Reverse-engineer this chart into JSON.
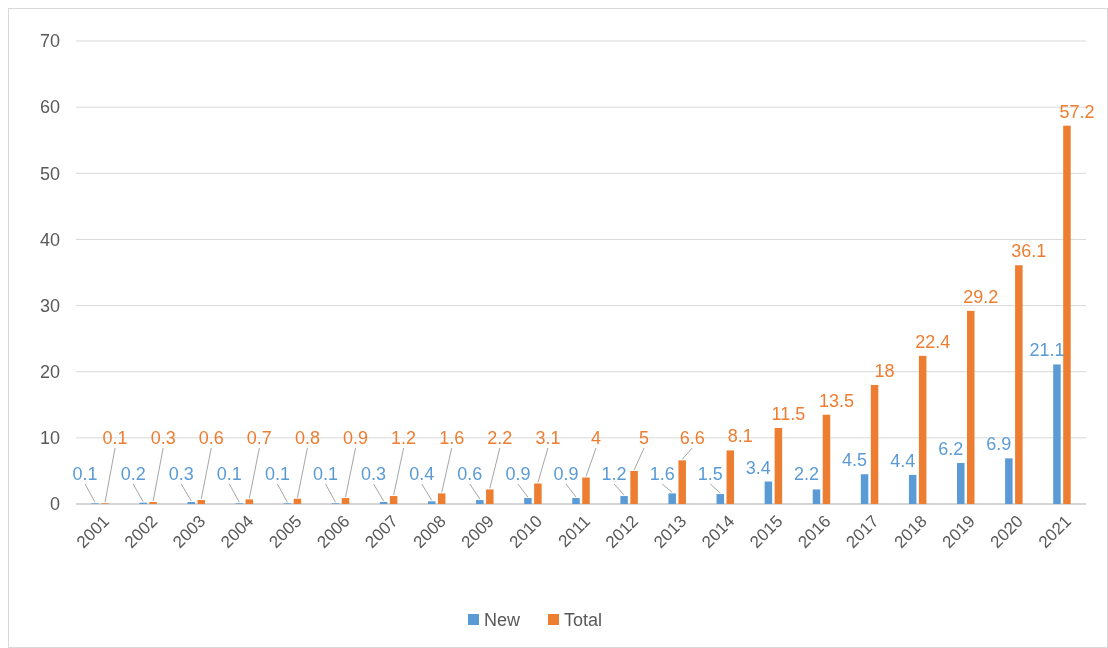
{
  "chart_data": {
    "type": "bar",
    "categories": [
      "2001",
      "2002",
      "2003",
      "2004",
      "2005",
      "2006",
      "2007",
      "2008",
      "2009",
      "2010",
      "2011",
      "2012",
      "2013",
      "2014",
      "2015",
      "2016",
      "2017",
      "2018",
      "2019",
      "2020",
      "2021"
    ],
    "series": [
      {
        "name": "New",
        "color": "#5b9bd5",
        "values": [
          0.1,
          0.2,
          0.3,
          0.1,
          0.1,
          0.1,
          0.3,
          0.4,
          0.6,
          0.9,
          0.9,
          1.2,
          1.6,
          1.5,
          3.4,
          2.2,
          4.5,
          4.4,
          6.2,
          6.9,
          21.1
        ]
      },
      {
        "name": "Total",
        "color": "#ed7d31",
        "values": [
          0.1,
          0.3,
          0.6,
          0.7,
          0.8,
          0.9,
          1.2,
          1.6,
          2.2,
          3.1,
          4,
          5,
          6.6,
          8.1,
          11.5,
          13.5,
          18,
          22.4,
          29.2,
          36.1,
          57.2
        ]
      }
    ],
    "ylim": [
      0,
      70
    ],
    "yticks": [
      0,
      10,
      20,
      30,
      40,
      50,
      60,
      70
    ],
    "grid": "y",
    "legend": "bottom",
    "data_labels": true
  }
}
